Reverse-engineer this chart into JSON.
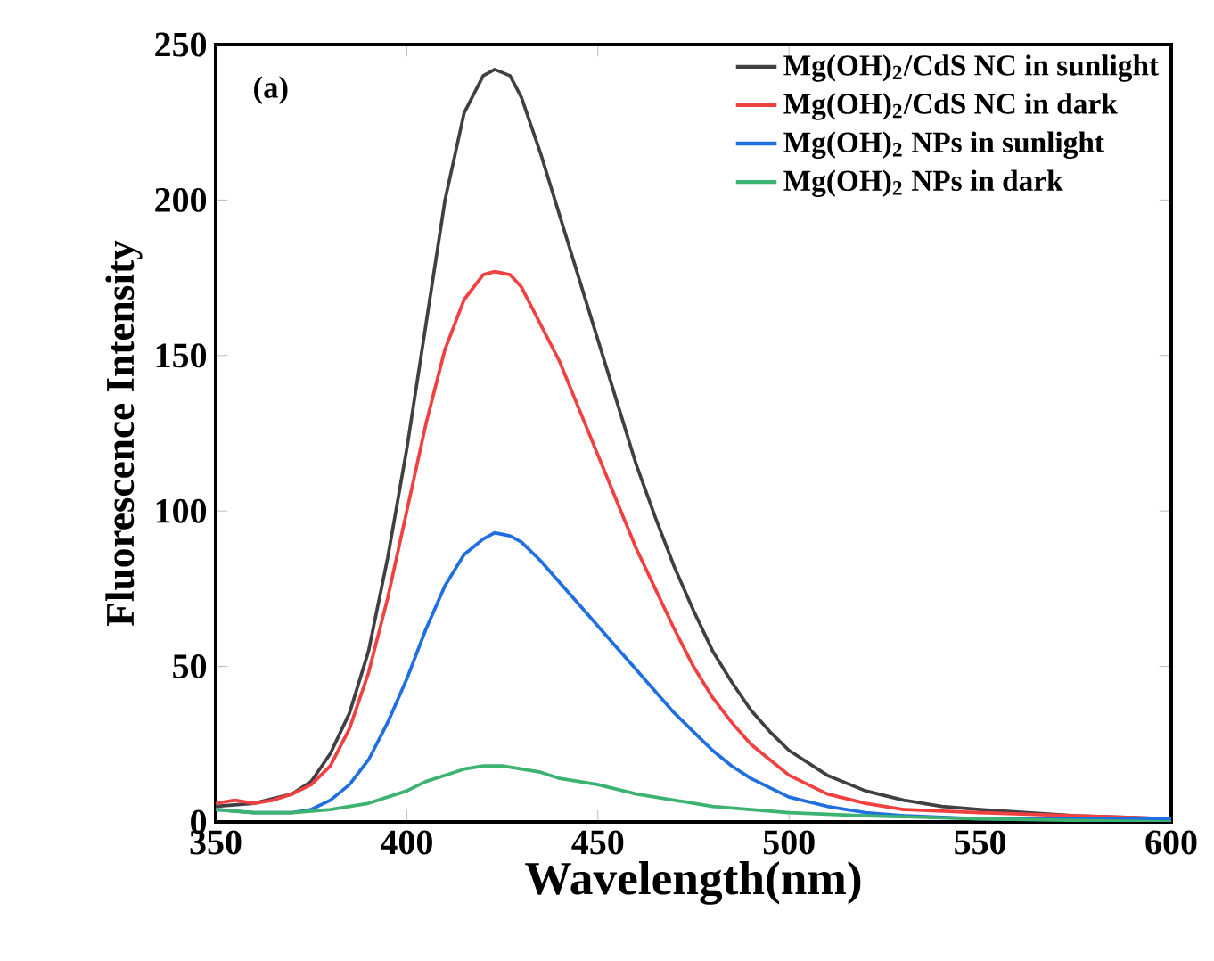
{
  "chart_data": {
    "type": "line",
    "xlabel": "Wavelength(nm)",
    "ylabel": "Fluorescence Intensity",
    "annotations": [
      "(a)"
    ],
    "xlim": [
      350,
      600
    ],
    "ylim": [
      0,
      250
    ],
    "xticks": [
      350,
      400,
      450,
      500,
      550,
      600
    ],
    "yticks": [
      0,
      50,
      100,
      150,
      200,
      250
    ],
    "legend": "top right",
    "series": [
      {
        "name": "Mg(OH)$_{2}$/CdS NC in sunlight",
        "color": "#404040",
        "x": [
          350,
          360,
          370,
          375,
          380,
          385,
          390,
          395,
          400,
          405,
          410,
          415,
          420,
          423,
          427,
          430,
          435,
          440,
          445,
          450,
          455,
          460,
          465,
          470,
          475,
          480,
          485,
          490,
          495,
          500,
          510,
          520,
          530,
          540,
          550,
          575,
          600
        ],
        "values": [
          5,
          6,
          9,
          13,
          22,
          35,
          55,
          85,
          120,
          160,
          200,
          228,
          240,
          242,
          240,
          233,
          215,
          195,
          175,
          155,
          135,
          115,
          98,
          82,
          68,
          55,
          45,
          36,
          29,
          23,
          15,
          10,
          7,
          5,
          4,
          2,
          1
        ]
      },
      {
        "name": "Mg(OH)$_{2}$/CdS NC in dark",
        "color": "#f04040",
        "x": [
          350,
          355,
          360,
          365,
          370,
          375,
          380,
          385,
          390,
          395,
          400,
          405,
          410,
          415,
          420,
          423,
          427,
          430,
          435,
          440,
          445,
          450,
          455,
          460,
          465,
          470,
          475,
          480,
          485,
          490,
          495,
          500,
          510,
          520,
          530,
          550,
          575,
          600
        ],
        "values": [
          6,
          7,
          6,
          7,
          9,
          12,
          18,
          30,
          48,
          72,
          100,
          128,
          152,
          168,
          176,
          177,
          176,
          172,
          160,
          148,
          133,
          118,
          103,
          88,
          75,
          62,
          50,
          40,
          32,
          25,
          20,
          15,
          9,
          6,
          4,
          3,
          2,
          1
        ]
      },
      {
        "name": "Mg(OH)$_{2}$ NPs in sunlight",
        "color": "#1f6fe0",
        "x": [
          350,
          360,
          370,
          375,
          380,
          385,
          390,
          395,
          400,
          405,
          410,
          415,
          420,
          423,
          427,
          430,
          435,
          440,
          445,
          450,
          455,
          460,
          465,
          470,
          475,
          480,
          485,
          490,
          495,
          500,
          510,
          520,
          530,
          550,
          600
        ],
        "values": [
          4,
          3,
          3,
          4,
          7,
          12,
          20,
          32,
          46,
          62,
          76,
          86,
          91,
          93,
          92,
          90,
          84,
          77,
          70,
          63,
          56,
          49,
          42,
          35,
          29,
          23,
          18,
          14,
          11,
          8,
          5,
          3,
          2,
          1,
          1
        ]
      },
      {
        "name": "Mg(OH)$_{2}$ NPs in dark",
        "color": "#3cb371",
        "x": [
          350,
          360,
          370,
          380,
          390,
          400,
          405,
          410,
          415,
          420,
          425,
          430,
          435,
          440,
          450,
          460,
          470,
          480,
          490,
          500,
          520,
          550,
          600
        ],
        "values": [
          4,
          3,
          3,
          4,
          6,
          10,
          13,
          15,
          17,
          18,
          18,
          17,
          16,
          14,
          12,
          9,
          7,
          5,
          4,
          3,
          2,
          1,
          0
        ]
      }
    ]
  }
}
